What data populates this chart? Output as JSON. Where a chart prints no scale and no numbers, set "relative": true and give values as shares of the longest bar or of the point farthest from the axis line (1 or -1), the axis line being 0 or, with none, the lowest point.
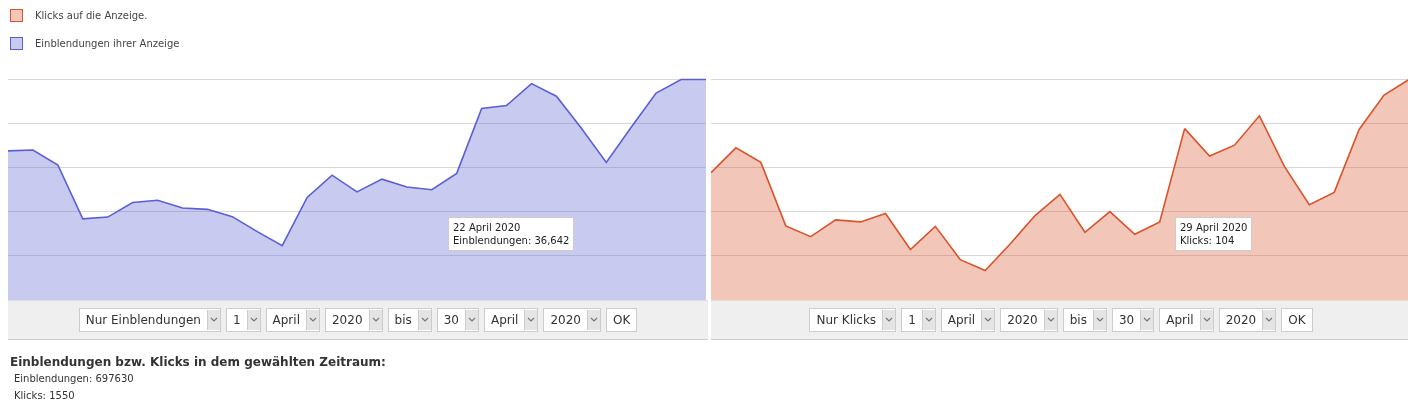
{
  "chart_data": [
    {
      "type": "area",
      "relative": true,
      "grid": true,
      "legend": "top left",
      "marker": "none",
      "categories": [
        null,
        null,
        null,
        null,
        null,
        null,
        null,
        null,
        null,
        null,
        null,
        null,
        null,
        null,
        null,
        null,
        null,
        null,
        null,
        null,
        null,
        null,
        null,
        null,
        null,
        null,
        null,
        null,
        null
      ],
      "series": [
        {
          "name": "Einblendungen ihrer Anzeige",
          "color": "#5a5fd3",
          "values": [
            0.676,
            0.68,
            0.612,
            0.368,
            0.376,
            0.442,
            0.452,
            0.417,
            0.411,
            0.378,
            0.31,
            0.246,
            0.465,
            0.566,
            0.49,
            0.548,
            0.512,
            0.5,
            0.574,
            0.868,
            0.882,
            0.981,
            0.924,
            0.779,
            0.624,
            0.783,
            0.938,
            1,
            1
          ]
        }
      ],
      "annotations": [
        "22 April 2020\nEinblendungen: 36,642",
        "Nur Einblendungen",
        "1",
        "April",
        "2020",
        "bis",
        "30",
        "April",
        "2020",
        "OK"
      ]
    },
    {
      "type": "area",
      "relative": true,
      "grid": true,
      "legend": "top left",
      "marker": "none",
      "categories": [
        null,
        null,
        null,
        null,
        null,
        null,
        null,
        null,
        null,
        null,
        null,
        null,
        null,
        null,
        null,
        null,
        null,
        null,
        null,
        null,
        null,
        null,
        null,
        null,
        null,
        null,
        null,
        null,
        null
      ],
      "series": [
        {
          "name": "Klicks auf die Anzeige.",
          "color": "#d9532b",
          "values": [
            0.577,
            0.69,
            0.624,
            0.336,
            0.287,
            0.363,
            0.354,
            0.392,
            0.229,
            0.334,
            0.183,
            0.134,
            0.254,
            0.383,
            0.479,
            0.307,
            0.401,
            0.298,
            0.354,
            0.777,
            0.653,
            0.702,
            0.835,
            0.606,
            0.432,
            0.488,
            0.773,
            0.929,
            1
          ]
        }
      ],
      "annotations": [
        "29 April 2020\nKlicks: 104",
        "Nur Klicks",
        "1",
        "April",
        "2020",
        "bis",
        "30",
        "April",
        "2020",
        "OK"
      ]
    },
    {
      "type": "other",
      "title": "Einblendungen bzw. Klicks in dem gewählten Zeitraum:",
      "annotations": [
        "Einblendungen: 697630",
        "Klicks: 1550"
      ]
    }
  ]
}
